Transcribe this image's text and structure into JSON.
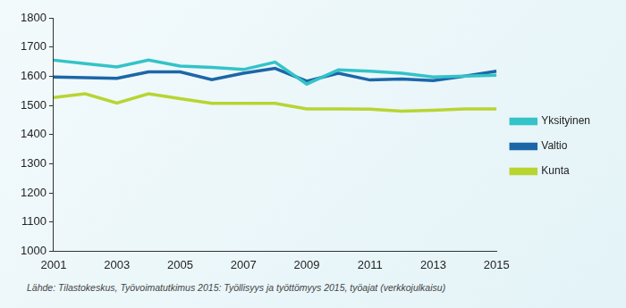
{
  "chart_data": {
    "type": "line",
    "x": [
      2001,
      2002,
      2003,
      2004,
      2005,
      2006,
      2007,
      2008,
      2009,
      2010,
      2011,
      2012,
      2013,
      2014,
      2015
    ],
    "series": [
      {
        "name": "Yksityinen",
        "color": "#33c3c8",
        "values": [
          1655,
          1643,
          1632,
          1655,
          1635,
          1630,
          1623,
          1648,
          1573,
          1622,
          1617,
          1610,
          1597,
          1600,
          1603
        ]
      },
      {
        "name": "Valtio",
        "color": "#1c66a8",
        "values": [
          1597,
          1595,
          1593,
          1615,
          1615,
          1588,
          1610,
          1627,
          1583,
          1610,
          1587,
          1590,
          1585,
          1600,
          1617
        ]
      },
      {
        "name": "Kunta",
        "color": "#b8d432",
        "values": [
          1527,
          1540,
          1508,
          1540,
          1523,
          1507,
          1507,
          1507,
          1488,
          1488,
          1487,
          1480,
          1483,
          1488,
          1488
        ]
      }
    ],
    "xlim": [
      2001,
      2015
    ],
    "xticks": [
      2001,
      2003,
      2005,
      2007,
      2009,
      2011,
      2013,
      2015
    ],
    "ylim": [
      1000,
      1800
    ],
    "yticks": [
      1000,
      1100,
      1200,
      1300,
      1400,
      1500,
      1600,
      1700,
      1800
    ],
    "grid": false,
    "legend": "right",
    "annotations": [
      "Lähde: Tilastokeskus, Työvoimatutkimus 2015: Työllisyys ja työttömyys 2015, työajat (verkkojulkaisu)"
    ]
  }
}
